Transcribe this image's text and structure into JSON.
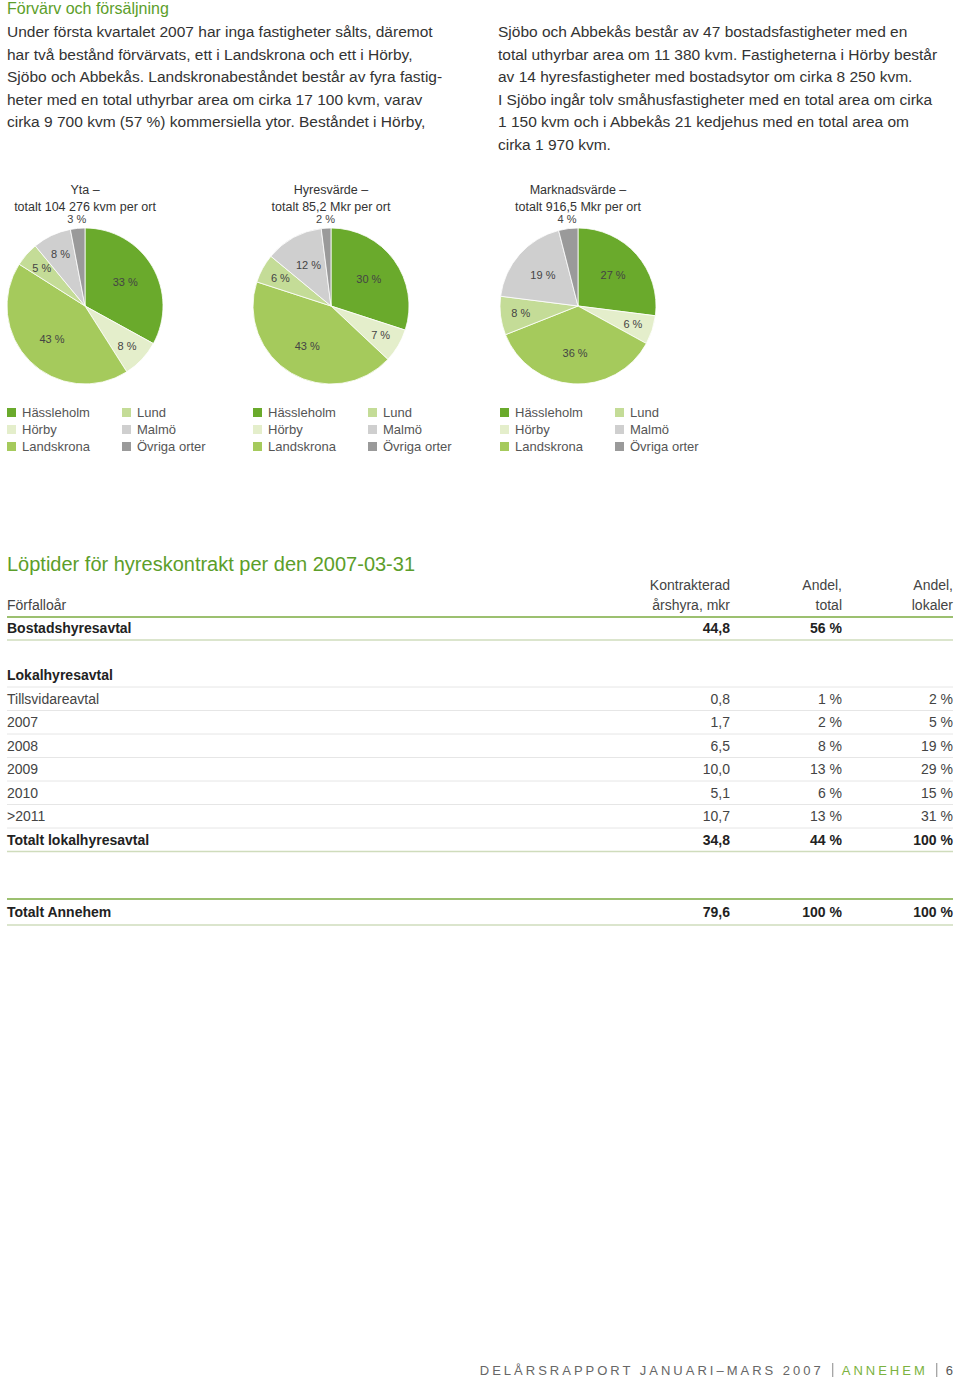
{
  "intro": {
    "heading": "Förvärv och försäljning",
    "columns": [
      [
        "Under första kvartalet 2007 har inga fastigheter sålts, däremot",
        "har två bestånd förvärvats, ett i Landskrona och ett i Hörby,",
        "Sjöbo och Abbekås. Landskronabeståndet består av fyra fastig-",
        "heter med en total uthyrbar area om cirka 17 100 kvm, varav",
        "cirka 9 700 kvm (57 %) kommersiella ytor. Beståndet i Hörby,"
      ],
      [
        "Sjöbo och Abbekås består av 47 bostadsfastigheter med en",
        "total uthyrbar area om 11 380 kvm. Fastigheterna i Hörby består",
        "av 14 hyresfastigheter med bostadsytor om cirka 8 250 kvm.",
        "I Sjöbo ingår tolv småhusfastigheter med en total area om cirka",
        "1 150 kvm och i Abbekås 21 kedjehus med en total area om",
        "cirka 1 970 kvm."
      ]
    ]
  },
  "chart_data": [
    {
      "type": "pie",
      "title": "Yta –",
      "subtitle": "totalt 104 276 kvm per ort",
      "categories": [
        "Hässleholm",
        "Hörby",
        "Landskrona",
        "Lund",
        "Malmö",
        "Övriga orter"
      ],
      "values": [
        33,
        8,
        43,
        5,
        8,
        3
      ],
      "value_labels": [
        "33 %",
        "8 %",
        "43 %",
        "5 %",
        "8 %",
        "3 %"
      ],
      "colors": [
        "#6aaa2c",
        "#e4eecb",
        "#a5ca5c",
        "#c4dc97",
        "#cfcfcf",
        "#9a9a9a"
      ],
      "data_labels": true,
      "legend": "bottom"
    },
    {
      "type": "pie",
      "title": "Hyresvärde –",
      "subtitle": "totalt 85,2 Mkr per ort",
      "categories": [
        "Hässleholm",
        "Hörby",
        "Landskrona",
        "Lund",
        "Malmö",
        "Övriga orter"
      ],
      "values": [
        30,
        7,
        43,
        6,
        12,
        2
      ],
      "value_labels": [
        "30 %",
        "7 %",
        "43 %",
        "6 %",
        "12 %",
        "2 %"
      ],
      "colors": [
        "#6aaa2c",
        "#e4eecb",
        "#a5ca5c",
        "#c4dc97",
        "#cfcfcf",
        "#9a9a9a"
      ],
      "data_labels": true,
      "legend": "bottom"
    },
    {
      "type": "pie",
      "title": "Marknadsvärde –",
      "subtitle": "totalt 916,5 Mkr per ort",
      "categories": [
        "Hässleholm",
        "Hörby",
        "Landskrona",
        "Lund",
        "Malmö",
        "Övriga orter"
      ],
      "values": [
        27,
        6,
        36,
        8,
        19,
        4
      ],
      "value_labels": [
        "27 %",
        "6 %",
        "36 %",
        "8 %",
        "19 %",
        "4 %"
      ],
      "colors": [
        "#6aaa2c",
        "#e4eecb",
        "#a5ca5c",
        "#c4dc97",
        "#cfcfcf",
        "#9a9a9a"
      ],
      "data_labels": true,
      "legend": "bottom"
    }
  ],
  "table": {
    "title": "Löptider för hyreskontrakt per den 2007-03-31",
    "columns": [
      [
        "Förfalloår"
      ],
      [
        "Kontrakterad",
        "årshyra, mkr"
      ],
      [
        "Andel,",
        "total"
      ],
      [
        "Andel,",
        "lokaler"
      ]
    ],
    "sections": [
      {
        "total": [
          "Bostadshyresavtal",
          "44,8",
          "56 %"
        ]
      },
      {
        "heading": "Lokalhyresavtal",
        "rows": [
          [
            "Tillsvidareavtal",
            "0,8",
            "1 %",
            "2 %"
          ],
          [
            "2007",
            "1,7",
            "2 %",
            "5 %"
          ],
          [
            "2008",
            "6,5",
            "8 %",
            "19 %"
          ],
          [
            "2009",
            "10,0",
            "13 %",
            "29 %"
          ],
          [
            "2010",
            "5,1",
            "6 %",
            "15 %"
          ],
          [
            ">2011",
            "10,7",
            "13 %",
            "31 %"
          ]
        ],
        "total": [
          "Totalt lokalhyresavtal",
          "34,8",
          "44 %",
          "100 %"
        ]
      }
    ],
    "grand_total": [
      "Totalt Annehem",
      "79,6",
      "100 %",
      "100 %"
    ]
  },
  "footer": {
    "report": "DELÅRSRAPPORT JANUARI–MARS 2007",
    "company": "ANNEHEM",
    "page": "6"
  }
}
